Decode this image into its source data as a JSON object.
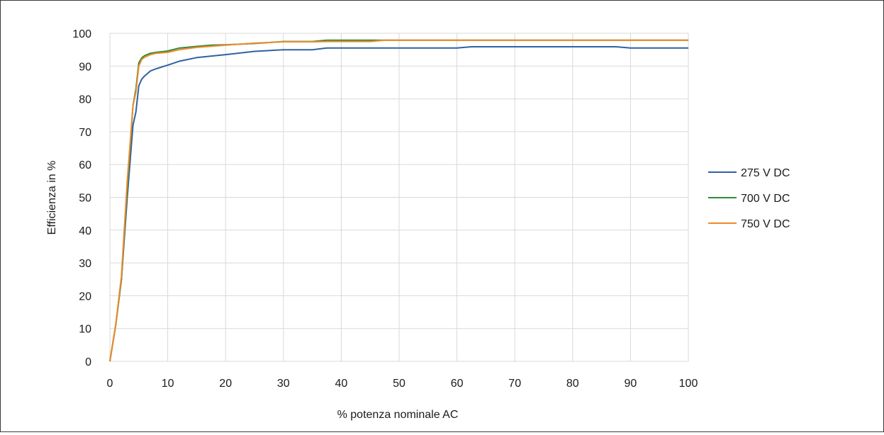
{
  "chart_data": {
    "type": "line",
    "title": "",
    "xlabel": "% potenza nominale AC",
    "ylabel": "Efficienza in %",
    "xlim": [
      0,
      100
    ],
    "ylim": [
      0,
      100
    ],
    "x_ticks": [
      "0",
      "10",
      "20",
      "30",
      "40",
      "50",
      "60",
      "70",
      "80",
      "90",
      "100"
    ],
    "y_ticks": [
      "0",
      "10",
      "20",
      "30",
      "40",
      "50",
      "60",
      "70",
      "80",
      "90",
      "100"
    ],
    "grid": true,
    "legend_position": "right",
    "series": [
      {
        "name": "275 V DC",
        "color": "#2e62a3",
        "points": [
          [
            0,
            0
          ],
          [
            1,
            11
          ],
          [
            2,
            25
          ],
          [
            3,
            50
          ],
          [
            4,
            72
          ],
          [
            4.5,
            76
          ],
          [
            5,
            84
          ],
          [
            5.5,
            86
          ],
          [
            6,
            87
          ],
          [
            7,
            88.5
          ],
          [
            8,
            89.2
          ],
          [
            10,
            90.3
          ],
          [
            12,
            91.5
          ],
          [
            15,
            92.6
          ],
          [
            20,
            93.5
          ],
          [
            25,
            94.5
          ],
          [
            30,
            95
          ],
          [
            35,
            95
          ],
          [
            37.5,
            95.5
          ],
          [
            40,
            95.5
          ],
          [
            45,
            95.5
          ],
          [
            50,
            95.5
          ],
          [
            55,
            95.5
          ],
          [
            60,
            95.5
          ],
          [
            62.5,
            95.9
          ],
          [
            70,
            95.9
          ],
          [
            75,
            95.9
          ],
          [
            80,
            95.9
          ],
          [
            87.5,
            95.9
          ],
          [
            90,
            95.5
          ],
          [
            95,
            95.5
          ],
          [
            100,
            95.5
          ]
        ]
      },
      {
        "name": "700 V DC",
        "color": "#2f8a3a",
        "points": [
          [
            0,
            0
          ],
          [
            1,
            11
          ],
          [
            2,
            25
          ],
          [
            3,
            53
          ],
          [
            4,
            78
          ],
          [
            4.5,
            83
          ],
          [
            5,
            91
          ],
          [
            5.5,
            92.5
          ],
          [
            6,
            93.2
          ],
          [
            7,
            93.9
          ],
          [
            8,
            94.2
          ],
          [
            10,
            94.6
          ],
          [
            12,
            95.5
          ],
          [
            15,
            96
          ],
          [
            17.5,
            96.4
          ],
          [
            20,
            96.5
          ],
          [
            25,
            96.9
          ],
          [
            30,
            97.5
          ],
          [
            35,
            97.5
          ],
          [
            37.5,
            97.9
          ],
          [
            40,
            97.9
          ],
          [
            45,
            97.9
          ],
          [
            47.5,
            97.9
          ],
          [
            50,
            97.9
          ],
          [
            60,
            97.9
          ],
          [
            70,
            97.9
          ],
          [
            80,
            97.9
          ],
          [
            90,
            97.9
          ],
          [
            100,
            97.9
          ]
        ]
      },
      {
        "name": "750 V DC",
        "color": "#ee8b2b",
        "points": [
          [
            0,
            0
          ],
          [
            1,
            11
          ],
          [
            2,
            26
          ],
          [
            3,
            55
          ],
          [
            4,
            78
          ],
          [
            4.5,
            82
          ],
          [
            5,
            90
          ],
          [
            5.5,
            92
          ],
          [
            6,
            92.7
          ],
          [
            7,
            93.5
          ],
          [
            8,
            93.9
          ],
          [
            10,
            94.2
          ],
          [
            12,
            95
          ],
          [
            15,
            95.7
          ],
          [
            20,
            96.4
          ],
          [
            25,
            97
          ],
          [
            30,
            97.4
          ],
          [
            35,
            97.4
          ],
          [
            37.5,
            97.5
          ],
          [
            40,
            97.5
          ],
          [
            45,
            97.5
          ],
          [
            47.5,
            97.9
          ],
          [
            50,
            97.9
          ],
          [
            60,
            97.9
          ],
          [
            70,
            97.9
          ],
          [
            80,
            97.9
          ],
          [
            90,
            97.9
          ],
          [
            100,
            97.9
          ]
        ]
      }
    ]
  }
}
